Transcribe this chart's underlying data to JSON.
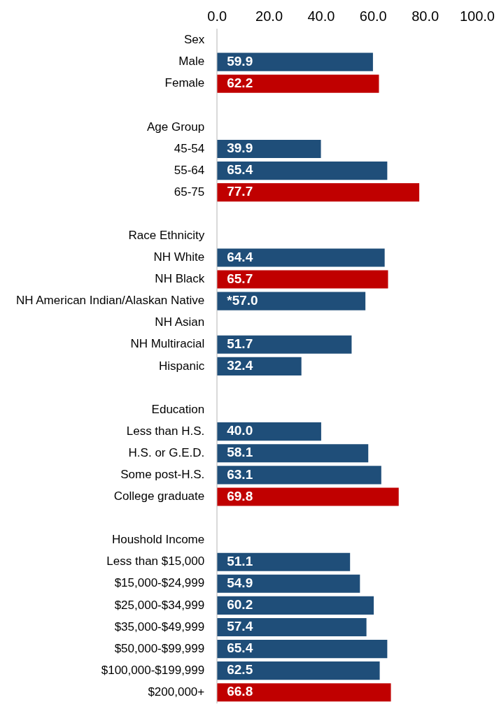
{
  "chart_data": {
    "type": "bar",
    "orientation": "horizontal",
    "categories": [
      "Sex",
      "Male",
      "Female",
      null,
      "Age Group",
      "45-54",
      "55-64",
      "65-75",
      null,
      "Race Ethnicity",
      "NH White",
      "NH Black",
      "NH American Indian/Alaskan Native",
      "NH Asian",
      "NH Multiracial",
      "Hispanic",
      null,
      "Education",
      "Less than H.S.",
      "H.S. or G.E.D.",
      "Some post-H.S.",
      "College graduate",
      null,
      "Houshold Income",
      "Less than $15,000",
      "$15,000-$24,999",
      "$25,000-$34,999",
      "$35,000-$49,999",
      "$50,000-$99,999",
      "$100,000-$199,999",
      "$200,000+"
    ],
    "values": [
      null,
      59.9,
      62.2,
      null,
      null,
      39.9,
      65.4,
      77.7,
      null,
      null,
      64.4,
      65.7,
      57.0,
      null,
      51.7,
      32.4,
      null,
      null,
      40.0,
      58.1,
      63.1,
      69.8,
      null,
      null,
      51.1,
      54.9,
      60.2,
      57.4,
      65.4,
      62.5,
      66.8
    ],
    "colors": [
      "#1f4e79",
      "#1f4e79",
      "#c00000",
      "#1f4e79",
      "#1f4e79",
      "#1f4e79",
      "#1f4e79",
      "#c00000",
      "#1f4e79",
      "#1f4e79",
      "#1f4e79",
      "#c00000",
      "#1f4e79",
      "#1f4e79",
      "#1f4e79",
      "#1f4e79",
      "#1f4e79",
      "#1f4e79",
      "#1f4e79",
      "#1f4e79",
      "#1f4e79",
      "#c00000",
      "#1f4e79",
      "#1f4e79",
      "#1f4e79",
      "#1f4e79",
      "#1f4e79",
      "#1f4e79",
      "#1f4e79",
      "#1f4e79",
      "#c00000"
    ],
    "value_labels": [
      null,
      "59.9",
      "62.2",
      null,
      null,
      "39.9",
      "65.4",
      "77.7",
      null,
      null,
      "64.4",
      "65.7",
      "*57.0",
      null,
      "51.7",
      "32.4",
      null,
      null,
      "40.0",
      "58.1",
      "63.1",
      "69.8",
      null,
      null,
      "51.1",
      "54.9",
      "60.2",
      "57.4",
      "65.4",
      "62.5",
      "66.8"
    ],
    "xlim": [
      0,
      100
    ],
    "xticks": [
      {
        "value": 0,
        "label": "0.0"
      },
      {
        "value": 20,
        "label": "20.0"
      },
      {
        "value": 40,
        "label": "40.0"
      },
      {
        "value": 60,
        "label": "60.0"
      },
      {
        "value": 80,
        "label": "80.0"
      },
      {
        "value": 100,
        "label": "100.0"
      }
    ],
    "grid": false
  }
}
